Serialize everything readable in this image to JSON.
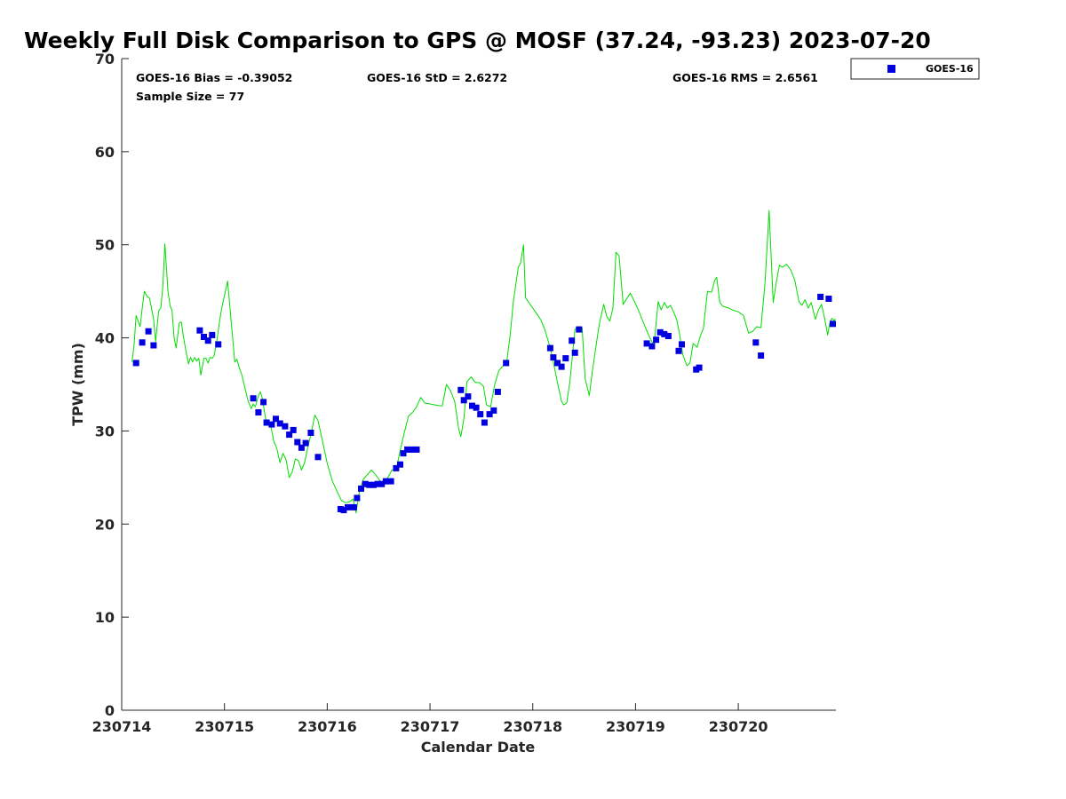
{
  "chart_data": {
    "type": "scatter",
    "title": "Weekly Full Disk Comparison to GPS @ MOSF (37.24, -93.23) 2023-07-20",
    "xlabel": "Calendar Date",
    "ylabel": "TPW (mm)",
    "x_unit": "days since 230714",
    "xlim": [
      0,
      6.95
    ],
    "ylim": [
      0,
      70
    ],
    "x_ticks": [
      0,
      1,
      2,
      3,
      4,
      5,
      6
    ],
    "x_tick_labels": [
      "230714",
      "230715",
      "230716",
      "230717",
      "230718",
      "230719",
      "230720"
    ],
    "y_ticks": [
      0,
      10,
      20,
      30,
      40,
      50,
      60,
      70
    ],
    "y_tick_labels": [
      "0",
      "10",
      "20",
      "30",
      "40",
      "50",
      "60",
      "70"
    ],
    "stats": {
      "bias": "GOES-16 Bias = -0.39052",
      "std": "GOES-16 StD = 2.6272",
      "rms": "GOES-16 RMS = 2.6561",
      "sample": "Sample Size = 77"
    },
    "legend": {
      "position": "top-right-outside",
      "label": "GOES-16"
    },
    "colors": {
      "goes": "#0000e0",
      "gps": "#00dd00"
    },
    "series": [
      {
        "name": "GOES-16",
        "kind": "scatter",
        "x": [
          0.14,
          0.2,
          0.26,
          0.31,
          0.76,
          0.8,
          0.84,
          0.88,
          0.94,
          1.28,
          1.33,
          1.38,
          1.41,
          1.46,
          1.5,
          1.54,
          1.59,
          1.63,
          1.67,
          1.71,
          1.75,
          1.79,
          1.84,
          1.91,
          2.13,
          2.16,
          2.2,
          2.26,
          2.29,
          2.33,
          2.37,
          2.41,
          2.45,
          2.49,
          2.53,
          2.57,
          2.62,
          2.67,
          2.71,
          2.74,
          2.78,
          2.83,
          2.87,
          3.3,
          3.33,
          3.37,
          3.41,
          3.45,
          3.49,
          3.53,
          3.58,
          3.62,
          3.66,
          3.74,
          4.17,
          4.2,
          4.24,
          4.28,
          4.32,
          4.38,
          4.41,
          4.45,
          5.11,
          5.16,
          5.2,
          5.24,
          5.28,
          5.32,
          5.42,
          5.45,
          5.59,
          5.62,
          6.17,
          6.22,
          6.8,
          6.88,
          6.92
        ],
        "y": [
          37.3,
          39.5,
          40.7,
          39.2,
          40.8,
          40.1,
          39.7,
          40.3,
          39.3,
          33.5,
          32.0,
          33.1,
          30.9,
          30.7,
          31.3,
          30.8,
          30.5,
          29.6,
          30.1,
          28.8,
          28.2,
          28.7,
          29.8,
          27.2,
          21.6,
          21.5,
          21.8,
          21.8,
          22.8,
          23.8,
          24.3,
          24.2,
          24.2,
          24.3,
          24.3,
          24.6,
          24.6,
          26.0,
          26.4,
          27.6,
          28.0,
          28.0,
          28.0,
          34.4,
          33.3,
          33.7,
          32.7,
          32.5,
          31.8,
          30.9,
          31.8,
          32.2,
          34.2,
          37.3,
          38.9,
          37.9,
          37.3,
          36.9,
          37.8,
          39.7,
          38.4,
          40.9,
          39.4,
          39.1,
          39.8,
          40.6,
          40.4,
          40.2,
          38.6,
          39.3,
          36.6,
          36.8,
          39.5,
          38.1,
          44.4,
          44.2,
          41.5
        ]
      },
      {
        "name": "GPS",
        "kind": "line",
        "x": [
          0.1,
          0.12,
          0.14,
          0.16,
          0.18,
          0.2,
          0.22,
          0.25,
          0.27,
          0.29,
          0.31,
          0.33,
          0.36,
          0.38,
          0.4,
          0.42,
          0.45,
          0.47,
          0.49,
          0.51,
          0.53,
          0.56,
          0.58,
          0.6,
          0.62,
          0.65,
          0.67,
          0.69,
          0.71,
          0.73,
          0.75,
          0.77,
          0.8,
          0.82,
          0.84,
          0.86,
          0.88,
          0.9,
          0.93,
          0.95,
          0.97,
          1.03,
          1.1,
          1.12,
          1.15,
          1.17,
          1.2,
          1.23,
          1.26,
          1.28,
          1.3,
          1.33,
          1.35,
          1.37,
          1.4,
          1.42,
          1.45,
          1.48,
          1.51,
          1.54,
          1.57,
          1.6,
          1.63,
          1.66,
          1.69,
          1.72,
          1.75,
          1.78,
          1.81,
          1.84,
          1.88,
          1.91,
          1.95,
          2.0,
          2.05,
          2.1,
          2.14,
          2.18,
          2.22,
          2.25,
          2.28,
          2.31,
          2.35,
          2.39,
          2.43,
          2.47,
          2.51,
          2.55,
          2.59,
          2.63,
          2.67,
          2.71,
          2.75,
          2.79,
          2.83,
          2.87,
          2.91,
          2.95,
          3.0,
          3.05,
          3.1,
          3.12,
          3.16,
          3.2,
          3.24,
          3.28,
          3.3,
          3.33,
          3.36,
          3.4,
          3.44,
          3.48,
          3.52,
          3.55,
          3.59,
          3.63,
          3.67,
          3.72,
          3.75,
          3.78,
          3.81,
          3.84,
          3.86,
          3.88,
          3.91,
          3.93,
          4.02,
          4.08,
          4.12,
          4.17,
          4.2,
          4.24,
          4.28,
          4.3,
          4.33,
          4.36,
          4.39,
          4.41,
          4.45,
          4.48,
          4.51,
          4.55,
          4.58,
          4.62,
          4.65,
          4.69,
          4.72,
          4.75,
          4.78,
          4.81,
          4.84,
          4.88,
          4.95,
          5.02,
          5.1,
          5.14,
          5.18,
          5.2,
          5.22,
          5.25,
          5.28,
          5.31,
          5.34,
          5.37,
          5.4,
          5.43,
          5.46,
          5.5,
          5.53,
          5.56,
          5.6,
          5.63,
          5.66,
          5.7,
          5.74,
          5.77,
          5.79,
          5.82,
          5.85,
          5.88,
          5.91,
          5.94,
          5.97,
          6.0,
          6.05,
          6.1,
          6.14,
          6.18,
          6.22,
          6.26,
          6.3,
          6.34,
          6.37,
          6.4,
          6.43,
          6.47,
          6.51,
          6.55,
          6.59,
          6.62,
          6.65,
          6.68,
          6.71,
          6.75,
          6.78,
          6.81,
          6.84,
          6.87,
          6.89,
          6.91,
          6.93,
          6.95
        ],
        "y": [
          37.4,
          39.2,
          42.4,
          41.8,
          41.2,
          43.2,
          45.0,
          44.4,
          44.3,
          43.2,
          42.0,
          39.6,
          42.9,
          43.2,
          45.5,
          50.1,
          45.0,
          43.5,
          42.9,
          40.0,
          38.9,
          41.6,
          41.7,
          40.2,
          38.9,
          37.2,
          37.9,
          37.4,
          37.9,
          37.5,
          37.8,
          36.0,
          37.8,
          37.8,
          37.3,
          37.9,
          37.8,
          38.1,
          40.0,
          41.6,
          43.0,
          46.1,
          37.4,
          37.7,
          36.6,
          36.0,
          34.6,
          33.2,
          32.4,
          32.9,
          32.6,
          33.8,
          34.2,
          33.4,
          31.3,
          31.0,
          30.6,
          28.9,
          28.1,
          26.6,
          27.6,
          26.9,
          25.0,
          25.6,
          27.0,
          26.8,
          25.8,
          26.6,
          28.2,
          29.6,
          31.7,
          31.1,
          29.1,
          26.5,
          24.6,
          23.4,
          22.5,
          22.3,
          22.4,
          22.7,
          21.2,
          23.3,
          24.8,
          25.3,
          25.8,
          25.3,
          24.7,
          24.3,
          25.0,
          25.8,
          25.8,
          27.9,
          29.8,
          31.6,
          32.0,
          32.6,
          33.6,
          33.0,
          32.9,
          32.8,
          32.7,
          32.7,
          35.0,
          34.3,
          33.2,
          30.2,
          29.4,
          31.3,
          35.3,
          35.8,
          35.2,
          35.2,
          34.8,
          32.8,
          32.6,
          35.0,
          36.5,
          37.1,
          37.7,
          40.3,
          43.8,
          46.1,
          47.6,
          48.0,
          50.0,
          44.3,
          42.9,
          41.9,
          40.8,
          38.9,
          37.4,
          35.2,
          33.2,
          32.8,
          33.0,
          35.2,
          38.6,
          40.9,
          41.2,
          41.1,
          35.6,
          33.8,
          36.4,
          39.5,
          41.6,
          43.6,
          42.3,
          41.8,
          43.2,
          49.2,
          48.8,
          43.6,
          44.8,
          43.2,
          41.0,
          40.0,
          39.2,
          41.6,
          43.9,
          43.0,
          43.8,
          43.2,
          43.5,
          42.8,
          42.0,
          40.3,
          38.2,
          37.0,
          37.3,
          39.4,
          39.0,
          40.2,
          41.0,
          45.0,
          44.9,
          46.2,
          46.5,
          43.8,
          43.4,
          43.3,
          43.2,
          43.0,
          42.9,
          42.8,
          42.4,
          40.5,
          40.7,
          41.2,
          41.1,
          45.9,
          53.7,
          43.8,
          46.0,
          47.8,
          47.6,
          47.9,
          47.3,
          46.2,
          43.9,
          43.5,
          44.1,
          43.2,
          43.8,
          42.0,
          43.0,
          43.6,
          42.1,
          40.3,
          41.6,
          42.1,
          41.9,
          42.0
        ]
      }
    ]
  }
}
